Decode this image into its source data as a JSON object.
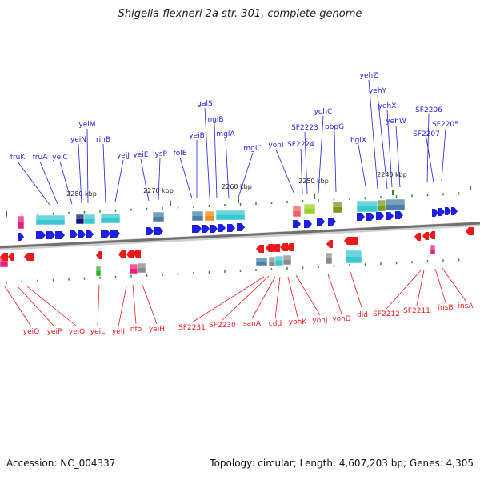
{
  "title": "Shigella flexneri 2a str. 301, complete genome",
  "footer": {
    "accession_label": "Accession:",
    "accession": "NC_004337",
    "topology_label": "Topology:",
    "topology": "circular",
    "length_label": "Length:",
    "length": "4,607,203 bp",
    "genes_label": "Genes:",
    "genes": "4,305"
  },
  "colors": {
    "forward": "#1f1fe0",
    "reverse": "#e81a1a",
    "backbone": "#888888",
    "tick": "#2e8b2e",
    "cyan": "#39c8d0",
    "steelblue": "#4a7fa8",
    "navy": "#12187a",
    "orange": "#f28c1a",
    "pink": "#e8207a",
    "olive": "#7a9a1e",
    "lime": "#9ad02a",
    "gray": "#8a8a8a",
    "salmon": "#f06060",
    "green": "#30b030"
  },
  "scale_labels": [
    "2280 kbp",
    "2270 kbp",
    "2260 kbp",
    "2250 kbp",
    "2240 kbp"
  ],
  "forward_genes": [
    "fruK",
    "fruA",
    "yeiC",
    "yeiN",
    "yeiM",
    "rihB",
    "yeiJ",
    "yeiE",
    "lysP",
    "folE",
    "yeiB",
    "galS",
    "mglB",
    "mglA",
    "mglC",
    "yohI",
    "SF2224",
    "SF2223",
    "yohC",
    "pbpG",
    "bglX",
    "yehZ",
    "yehY",
    "yehX",
    "yehW",
    "SF2207",
    "SF2206",
    "SF2205"
  ],
  "reverse_genes": [
    "yeiQ",
    "yeiP",
    "yeiO",
    "yeiL",
    "yeiI",
    "nfo",
    "yeiH",
    "SF2231",
    "SF2230",
    "sanA",
    "cdd",
    "yohK",
    "yohJ",
    "yohD",
    "dld",
    "SF2212",
    "SF2211",
    "insB",
    "insA"
  ],
  "icons": {
    "forward_gene": "blue-right-arrow",
    "reverse_gene": "red-left-arrow",
    "gc_feature": "colored-box"
  }
}
